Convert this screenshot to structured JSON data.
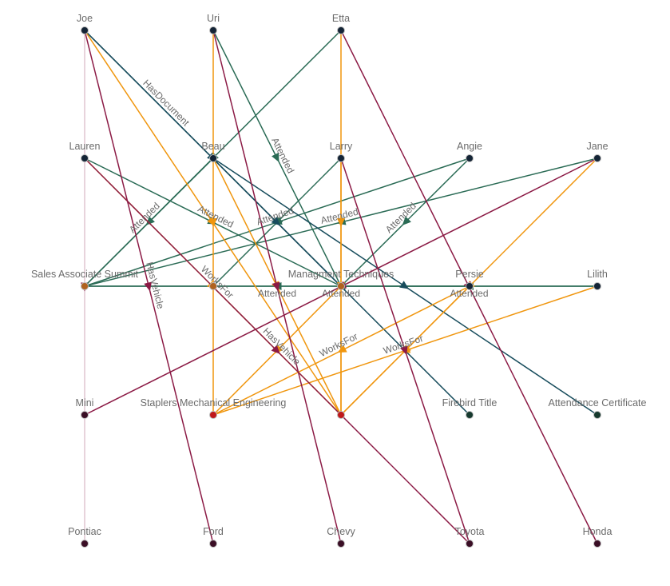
{
  "edge_colors": {
    "Attended": "#2a6b55",
    "HasDocument": "#174c5c",
    "WorksFor": "#f0960e",
    "HasVehicle": "#8b1a45",
    "faint": "#d8b8c6"
  },
  "node_colors": {
    "person": "#142436",
    "event": "#b0621e",
    "company": "#c0181b",
    "vehicle": "#3a0e25",
    "document": "#163a2e"
  },
  "nodes": [
    {
      "label": "Joe",
      "kind": "person"
    },
    {
      "label": "Uri",
      "kind": "person"
    },
    {
      "label": "Etta",
      "kind": "person"
    },
    {
      "label": "Lauren",
      "kind": "person"
    },
    {
      "label": "Beau",
      "kind": "person"
    },
    {
      "label": "Larry",
      "kind": "person"
    },
    {
      "label": "Angie",
      "kind": "person"
    },
    {
      "label": "Jane",
      "kind": "person"
    },
    {
      "label": "Sales Associate Summit",
      "kind": "event"
    },
    {
      "label": "",
      "kind": "event"
    },
    {
      "label": "Managment Techniques",
      "kind": "event"
    },
    {
      "label": "Persie",
      "kind": "person"
    },
    {
      "label": "Lilith",
      "kind": "person"
    },
    {
      "label": "Mini",
      "kind": "vehicle"
    },
    {
      "label": "Staplers Mechanical Engineering",
      "kind": "company"
    },
    {
      "label": "",
      "kind": "company"
    },
    {
      "label": "Firebird Title",
      "kind": "document"
    },
    {
      "label": "Attendance Certificate",
      "kind": "document"
    },
    {
      "label": "Pontiac",
      "kind": "vehicle"
    },
    {
      "label": "Ford",
      "kind": "vehicle"
    },
    {
      "label": "Chevy",
      "kind": "vehicle"
    },
    {
      "label": "Toyota",
      "kind": "vehicle"
    },
    {
      "label": "Honda",
      "kind": "vehicle"
    }
  ],
  "edges": [
    {
      "source": 0,
      "target": 18,
      "type": "faint",
      "label": ""
    },
    {
      "source": 1,
      "target": 10,
      "type": "Attended",
      "label": "Attended"
    },
    {
      "source": 2,
      "target": 8,
      "type": "Attended",
      "label": ""
    },
    {
      "source": 4,
      "target": 8,
      "type": "Attended",
      "label": "Attended"
    },
    {
      "source": 3,
      "target": 10,
      "type": "Attended",
      "label": "Attended"
    },
    {
      "source": 6,
      "target": 8,
      "type": "Attended",
      "label": "Attended"
    },
    {
      "source": 7,
      "target": 8,
      "type": "Attended",
      "label": "Attended"
    },
    {
      "source": 6,
      "target": 10,
      "type": "Attended",
      "label": "Attended"
    },
    {
      "source": 5,
      "target": 9,
      "type": "Attended",
      "label": ""
    },
    {
      "source": 11,
      "target": 8,
      "type": "Attended",
      "label": "Attended"
    },
    {
      "source": 12,
      "target": 8,
      "type": "Attended",
      "label": "Attended"
    },
    {
      "source": 12,
      "target": 10,
      "type": "Attended",
      "label": "Attended"
    },
    {
      "source": 0,
      "target": 16,
      "type": "HasDocument",
      "label": "HasDocument"
    },
    {
      "source": 0,
      "target": 10,
      "type": "HasDocument",
      "label": ""
    },
    {
      "source": 4,
      "target": 17,
      "type": "HasDocument",
      "label": ""
    },
    {
      "source": 3,
      "target": 15,
      "type": "WorksFor",
      "label": "WorksFor"
    },
    {
      "source": 1,
      "target": 14,
      "type": "WorksFor",
      "label": ""
    },
    {
      "source": 2,
      "target": 15,
      "type": "WorksFor",
      "label": ""
    },
    {
      "source": 5,
      "target": 15,
      "type": "WorksFor",
      "label": ""
    },
    {
      "source": 4,
      "target": 15,
      "type": "WorksFor",
      "label": ""
    },
    {
      "source": 0,
      "target": 15,
      "type": "WorksFor",
      "label": ""
    },
    {
      "source": 7,
      "target": 15,
      "type": "WorksFor",
      "label": ""
    },
    {
      "source": 11,
      "target": 14,
      "type": "WorksFor",
      "label": "WorksFor"
    },
    {
      "source": 12,
      "target": 14,
      "type": "WorksFor",
      "label": "WorksFor"
    },
    {
      "source": 11,
      "target": 15,
      "type": "WorksFor",
      "label": ""
    },
    {
      "source": 10,
      "target": 14,
      "type": "WorksFor",
      "label": ""
    },
    {
      "source": 0,
      "target": 19,
      "type": "HasVehicle",
      "label": "HasVehicle"
    },
    {
      "source": 1,
      "target": 20,
      "type": "HasVehicle",
      "label": ""
    },
    {
      "source": 2,
      "target": 22,
      "type": "HasVehicle",
      "label": ""
    },
    {
      "source": 5,
      "target": 21,
      "type": "HasVehicle",
      "label": ""
    },
    {
      "source": 3,
      "target": 21,
      "type": "HasVehicle",
      "label": "HasVehicle"
    },
    {
      "source": 7,
      "target": 13,
      "type": "HasVehicle",
      "label": ""
    }
  ]
}
